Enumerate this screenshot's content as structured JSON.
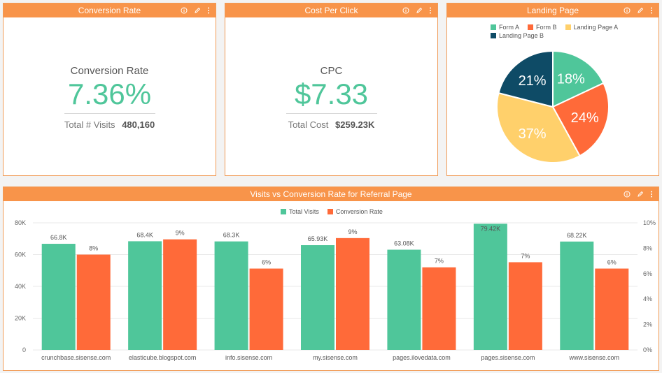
{
  "widgets": {
    "conversion": {
      "header": "Conversion Rate",
      "title": "Conversion Rate",
      "value": "7.36%",
      "sub_label": "Total # Visits",
      "sub_value": "480,160"
    },
    "cpc": {
      "header": "Cost Per Click",
      "title": "CPC",
      "value": "$7.33",
      "sub_label": "Total Cost",
      "sub_value": "$259.23K"
    },
    "landing": {
      "header": "Landing Page"
    },
    "referral": {
      "header": "Visits vs Conversion Rate for Referral Page"
    }
  },
  "toolbar_icons": [
    "info-icon",
    "edit-icon",
    "more-icon"
  ],
  "chart_data": [
    {
      "type": "pie",
      "labels": [
        "Form A",
        "Form B",
        "Landing Page A",
        "Landing Page B"
      ],
      "values": [
        18,
        24,
        37,
        21
      ],
      "value_labels": [
        "18%",
        "24%",
        "37%",
        "21%"
      ],
      "colors": [
        "#4fc69a",
        "#ff6a39",
        "#ffd06b",
        "#0e4b66"
      ],
      "legend": "top"
    },
    {
      "type": "bar",
      "categories": [
        "crunchbase.sisense.com",
        "elasticube.blogspot.com",
        "info.sisense.com",
        "my.sisense.com",
        "pages.ilovedata.com",
        "pages.sisense.com",
        "www.sisense.com"
      ],
      "series": [
        {
          "name": "Total Visits",
          "axis": "left",
          "color": "#4fc69a",
          "values": [
            66800,
            68400,
            68300,
            65930,
            63080,
            79420,
            68220
          ],
          "labels": [
            "66.8K",
            "68.4K",
            "68.3K",
            "65.93K",
            "63.08K",
            "79.42K",
            "68.22K"
          ]
        },
        {
          "name": "Conversion Rate",
          "axis": "right",
          "color": "#ff6a39",
          "values": [
            7.5,
            8.7,
            6.4,
            8.8,
            6.5,
            6.9,
            6.4
          ],
          "labels": [
            "8%",
            "9%",
            "6%",
            "9%",
            "7%",
            "7%",
            "6%"
          ]
        }
      ],
      "y_left": {
        "min": 0,
        "max": 80000,
        "ticks": [
          "0",
          "20K",
          "40K",
          "60K",
          "80K"
        ]
      },
      "y_right": {
        "min": 0,
        "max": 10,
        "ticks": [
          "0%",
          "2%",
          "4%",
          "6%",
          "8%",
          "10%"
        ]
      },
      "grid": true,
      "legend": "top"
    }
  ]
}
